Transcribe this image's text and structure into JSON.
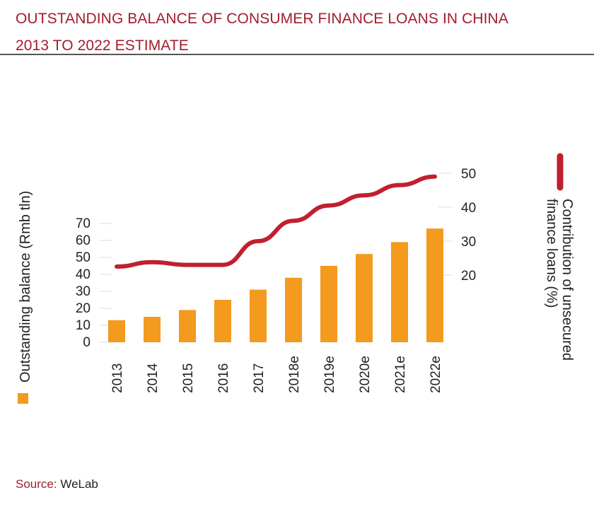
{
  "title": {
    "line1": "OUTSTANDING BALANCE OF CONSUMER FINANCE LOANS IN CHINA",
    "line2": "2013 TO 2022 ESTIMATE"
  },
  "source": {
    "label": "Source:",
    "value": "WeLab"
  },
  "colors": {
    "bar": "#f39a1f",
    "line": "#c0202e",
    "title": "#a31d2b"
  },
  "chart_data": {
    "type": "bar",
    "categories": [
      "2013",
      "2014",
      "2015",
      "2016",
      "2017",
      "2018e",
      "2019e",
      "2020e",
      "2021e",
      "2022e"
    ],
    "series": [
      {
        "type": "bar",
        "axis": "left",
        "values": [
          13,
          15,
          19,
          25,
          31,
          38,
          45,
          52,
          59,
          67
        ]
      },
      {
        "type": "line",
        "axis": "right",
        "values": [
          22.5,
          23.8,
          23,
          23,
          30,
          36,
          40.5,
          43.5,
          46.5,
          49
        ]
      }
    ],
    "ylabel": "Outstanding balance (Rmb tln)",
    "y2label_lines": [
      "Contribution of unsecured",
      "finance loans (%)"
    ],
    "yticks": [
      0,
      10,
      20,
      30,
      40,
      50,
      60,
      70
    ],
    "y2ticks": [
      20,
      30,
      40,
      50
    ],
    "ylim": [
      0,
      70
    ],
    "y2lim": [
      20,
      50
    ],
    "grid": true
  }
}
